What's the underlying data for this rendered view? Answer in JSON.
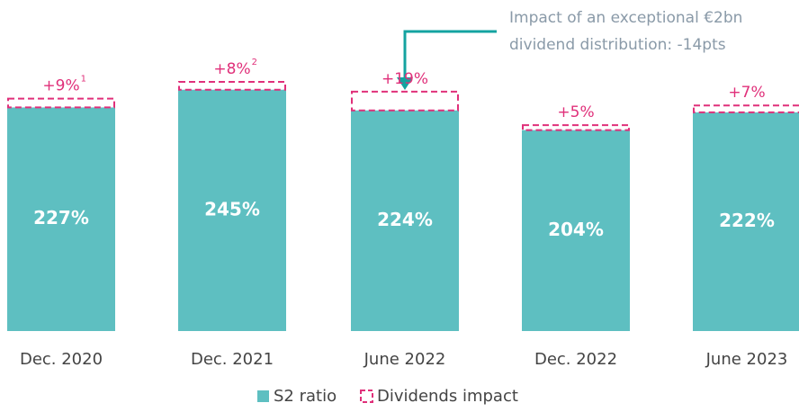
{
  "chart_data": {
    "type": "stacked_bar",
    "categories": [
      "Dec. 2020",
      "Dec. 2021",
      "June 2022",
      "Dec. 2022",
      "June 2023"
    ],
    "series": [
      {
        "name": "S2 ratio",
        "color": "#5ebfc1",
        "values": [
          227,
          245,
          224,
          204,
          222
        ],
        "value_labels": [
          "227%",
          "245%",
          "224%",
          "204%",
          "222%"
        ]
      },
      {
        "name": "Dividends impact",
        "color": "#e0307a",
        "values": [
          9,
          8,
          19,
          5,
          7
        ],
        "value_labels": [
          "+9%",
          "+8%",
          "+19%",
          "+5%",
          "+7%"
        ],
        "superscripts": [
          "1",
          "2",
          null,
          null,
          null
        ]
      }
    ],
    "annotation": [
      "Impact of an exceptional €2bn",
      "dividend distribution: -14pts"
    ]
  }
}
